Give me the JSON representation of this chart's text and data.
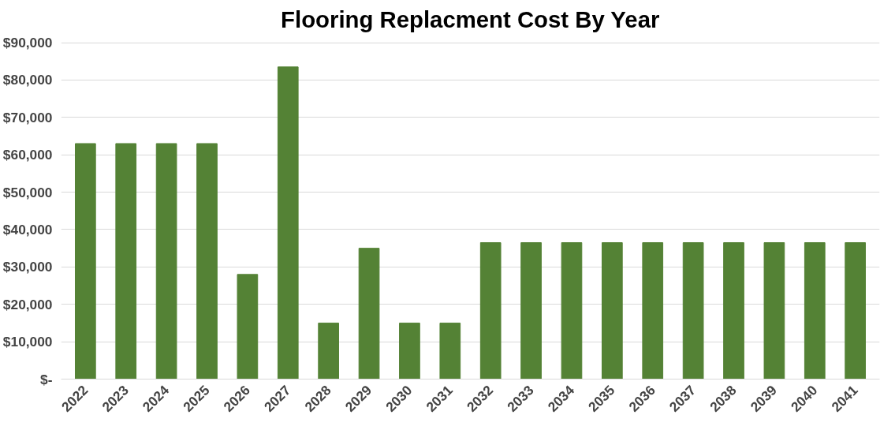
{
  "chart_data": {
    "type": "bar",
    "title": "Flooring Replacment Cost By Year",
    "categories": [
      "2022",
      "2023",
      "2024",
      "2025",
      "2026",
      "2027",
      "2028",
      "2029",
      "2030",
      "2031",
      "2032",
      "2033",
      "2034",
      "2035",
      "2036",
      "2037",
      "2038",
      "2039",
      "2040",
      "2041"
    ],
    "values": [
      63000,
      63000,
      63000,
      63000,
      28000,
      83500,
      15000,
      35000,
      15000,
      15000,
      36500,
      36500,
      36500,
      36500,
      36500,
      36500,
      36500,
      36500,
      36500,
      36500
    ],
    "color": "#548235",
    "ylim": [
      0,
      90000
    ],
    "yticks": [
      {
        "value": 0,
        "label": "$-"
      },
      {
        "value": 10000,
        "label": "$10,000"
      },
      {
        "value": 20000,
        "label": "$20,000"
      },
      {
        "value": 30000,
        "label": "$30,000"
      },
      {
        "value": 40000,
        "label": "$40,000"
      },
      {
        "value": 50000,
        "label": "$50,000"
      },
      {
        "value": 60000,
        "label": "$60,000"
      },
      {
        "value": 70000,
        "label": "$70,000"
      },
      {
        "value": 80000,
        "label": "$80,000"
      },
      {
        "value": 90000,
        "label": "$90,000"
      }
    ],
    "grid": "y"
  }
}
